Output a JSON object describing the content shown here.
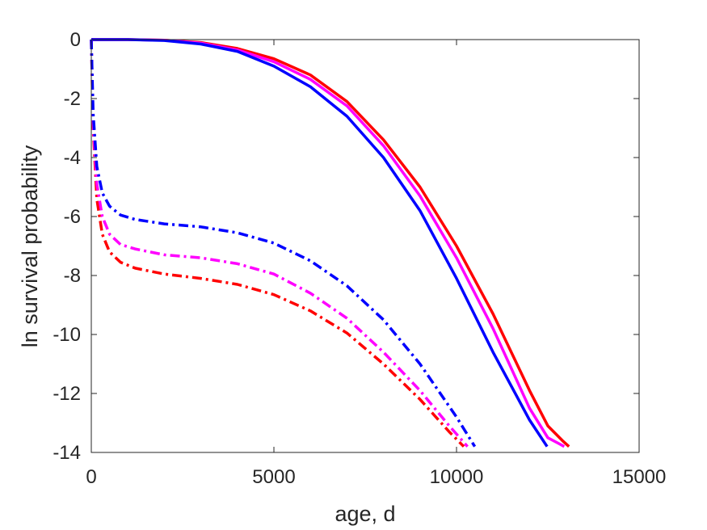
{
  "chart_data": {
    "type": "line",
    "title": "",
    "xlabel": "age, d",
    "ylabel": "ln survival probability",
    "xlim": [
      0,
      15000
    ],
    "ylim": [
      -14,
      0
    ],
    "xticks": [
      0,
      5000,
      10000,
      15000
    ],
    "xtick_labels": [
      "0",
      "5000",
      "10000",
      "15000"
    ],
    "yticks": [
      -14,
      -12,
      -10,
      -8,
      -6,
      -4,
      -2,
      0
    ],
    "ytick_labels": [
      "-14",
      "-12",
      "-10",
      "-8",
      "-6",
      "-4",
      "-2",
      "0"
    ],
    "grid": false,
    "legend": "none",
    "series": [
      {
        "color": "#ff0000",
        "style": "solid",
        "x": [
          0,
          1000,
          2000,
          3000,
          4000,
          5000,
          6000,
          7000,
          8000,
          9000,
          10000,
          11000,
          12000,
          12500,
          12900,
          13080
        ],
        "y": [
          0,
          0,
          -0.02,
          -0.1,
          -0.3,
          -0.65,
          -1.2,
          -2.1,
          -3.4,
          -5.0,
          -7.0,
          -9.3,
          -11.9,
          -13.1,
          -13.6,
          -13.8
        ]
      },
      {
        "color": "#ff00ff",
        "style": "solid",
        "x": [
          0,
          1000,
          2000,
          3000,
          4000,
          5000,
          6000,
          7000,
          8000,
          9000,
          10000,
          11000,
          12000,
          12500,
          12800,
          12950
        ],
        "y": [
          0,
          0,
          -0.02,
          -0.12,
          -0.35,
          -0.75,
          -1.35,
          -2.25,
          -3.6,
          -5.3,
          -7.4,
          -9.8,
          -12.5,
          -13.5,
          -13.7,
          -13.8
        ]
      },
      {
        "color": "#0000ff",
        "style": "solid",
        "x": [
          0,
          1000,
          2000,
          3000,
          4000,
          5000,
          6000,
          7000,
          8000,
          9000,
          10000,
          11000,
          12000,
          12480
        ],
        "y": [
          0,
          0,
          -0.03,
          -0.15,
          -0.4,
          -0.9,
          -1.6,
          -2.6,
          -4.0,
          -5.8,
          -8.1,
          -10.6,
          -12.9,
          -13.8
        ]
      },
      {
        "color": "#ff0000",
        "style": "dashdot",
        "x": [
          0,
          50,
          150,
          300,
          500,
          800,
          1200,
          2000,
          3000,
          4000,
          5000,
          6000,
          7000,
          8000,
          9000,
          9800,
          10200
        ],
        "y": [
          0,
          -3.0,
          -5.4,
          -6.6,
          -7.2,
          -7.55,
          -7.75,
          -7.95,
          -8.1,
          -8.3,
          -8.65,
          -9.2,
          -9.95,
          -11.0,
          -12.2,
          -13.3,
          -13.8
        ]
      },
      {
        "color": "#ff00ff",
        "style": "dashdot",
        "x": [
          0,
          50,
          150,
          300,
          500,
          800,
          1200,
          2000,
          3000,
          4000,
          5000,
          6000,
          7000,
          8000,
          9000,
          9800,
          10300
        ],
        "y": [
          0,
          -2.8,
          -4.9,
          -6.0,
          -6.6,
          -6.95,
          -7.1,
          -7.3,
          -7.4,
          -7.6,
          -7.95,
          -8.6,
          -9.45,
          -10.6,
          -11.9,
          -13.1,
          -13.8
        ]
      },
      {
        "color": "#0000ff",
        "style": "dashdot",
        "x": [
          0,
          50,
          150,
          300,
          500,
          800,
          1200,
          2000,
          3000,
          4000,
          5000,
          6000,
          7000,
          8000,
          9000,
          10000,
          10500
        ],
        "y": [
          0,
          -2.5,
          -4.3,
          -5.2,
          -5.65,
          -5.95,
          -6.1,
          -6.25,
          -6.35,
          -6.55,
          -6.9,
          -7.5,
          -8.35,
          -9.5,
          -11.0,
          -12.8,
          -13.8
        ]
      }
    ]
  }
}
